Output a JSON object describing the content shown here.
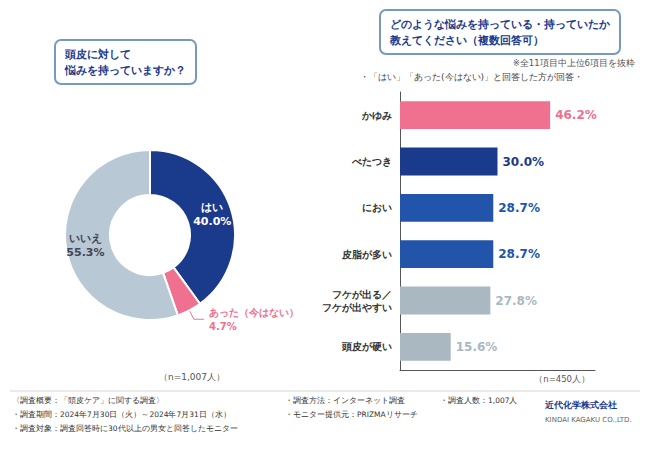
{
  "chart_data": [
    {
      "type": "pie",
      "title": "頭皮に対して\n悩みを持っていますか？",
      "categories": [
        "はい",
        "あった（今はない）",
        "いいえ"
      ],
      "values": [
        40.0,
        4.7,
        55.3
      ],
      "value_labels": [
        "40.0%",
        "4.7%",
        "55.3%"
      ],
      "colors": [
        "#1a3a8c",
        "#f07090",
        "#b8c8d4"
      ],
      "data_labels": true,
      "annotations": [
        "（n=1,007人）"
      ]
    },
    {
      "type": "bar",
      "orientation": "horizontal",
      "title": "どのような悩みを持っている・持っていたか\n教えてください（複数回答可）",
      "categories": [
        "かゆみ",
        "べたつき",
        "におい",
        "皮脂が多い",
        "フケが出る／\nフケが出やすい",
        "頭皮が硬い"
      ],
      "values": [
        46.2,
        30.0,
        28.7,
        28.7,
        27.8,
        15.6
      ],
      "value_labels": [
        "46.2%",
        "30.0%",
        "28.7%",
        "28.7%",
        "27.8%",
        "15.6%"
      ],
      "colors": [
        "#f07090",
        "#1a3a8c",
        "#2255aa",
        "#2255aa",
        "#aab8c2",
        "#aab8c2"
      ],
      "data_labels": true,
      "xlim": [
        0,
        60
      ],
      "tick_labels": "y",
      "grid": false,
      "annotations": [
        "※全11項目中上位6項目を抜粋",
        "・「はい」「あった(今はない)」と回答した方が回答・",
        "（n=450人）"
      ]
    }
  ],
  "annotations": [
    "〈調査概要：「頭皮ケア」に関する調査〉",
    "・調査期間：2024年7月30日（火）～2024年7月31日（水）",
    "・調査対象：調査回答時に30代以上の男女と回答したモニター",
    "・調査方法：インターネット調査",
    "・モニター提供元：PRIZMAリサーチ",
    "・調査人数：1,007人",
    "近代化学株式会社",
    "KINDAI KAGAKU CO.,LTD."
  ]
}
